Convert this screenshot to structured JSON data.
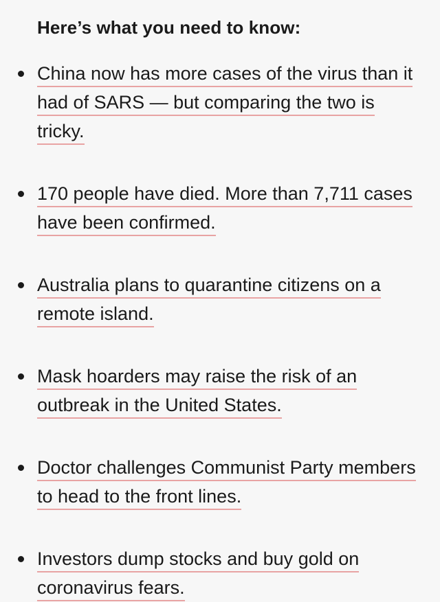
{
  "heading": "Here’s what you need to know:",
  "items": [
    {
      "text": "China now has more cases of the virus than it had of SARS — but comparing the two is tricky."
    },
    {
      "text": "170 people have died. More than 7,711 cases have been confirmed."
    },
    {
      "text": "Australia plans to quarantine citizens on a remote island."
    },
    {
      "text": "Mask hoarders may raise the risk of an outbreak in the United States."
    },
    {
      "text": "Doctor challenges Communist Party members to head to the front lines."
    },
    {
      "text": "Investors dump stocks and buy gold on coronavirus fears."
    }
  ],
  "colors": {
    "background": "#f7f7f7",
    "text": "#1a1a1a",
    "link_underline": "#e8a3a3"
  }
}
